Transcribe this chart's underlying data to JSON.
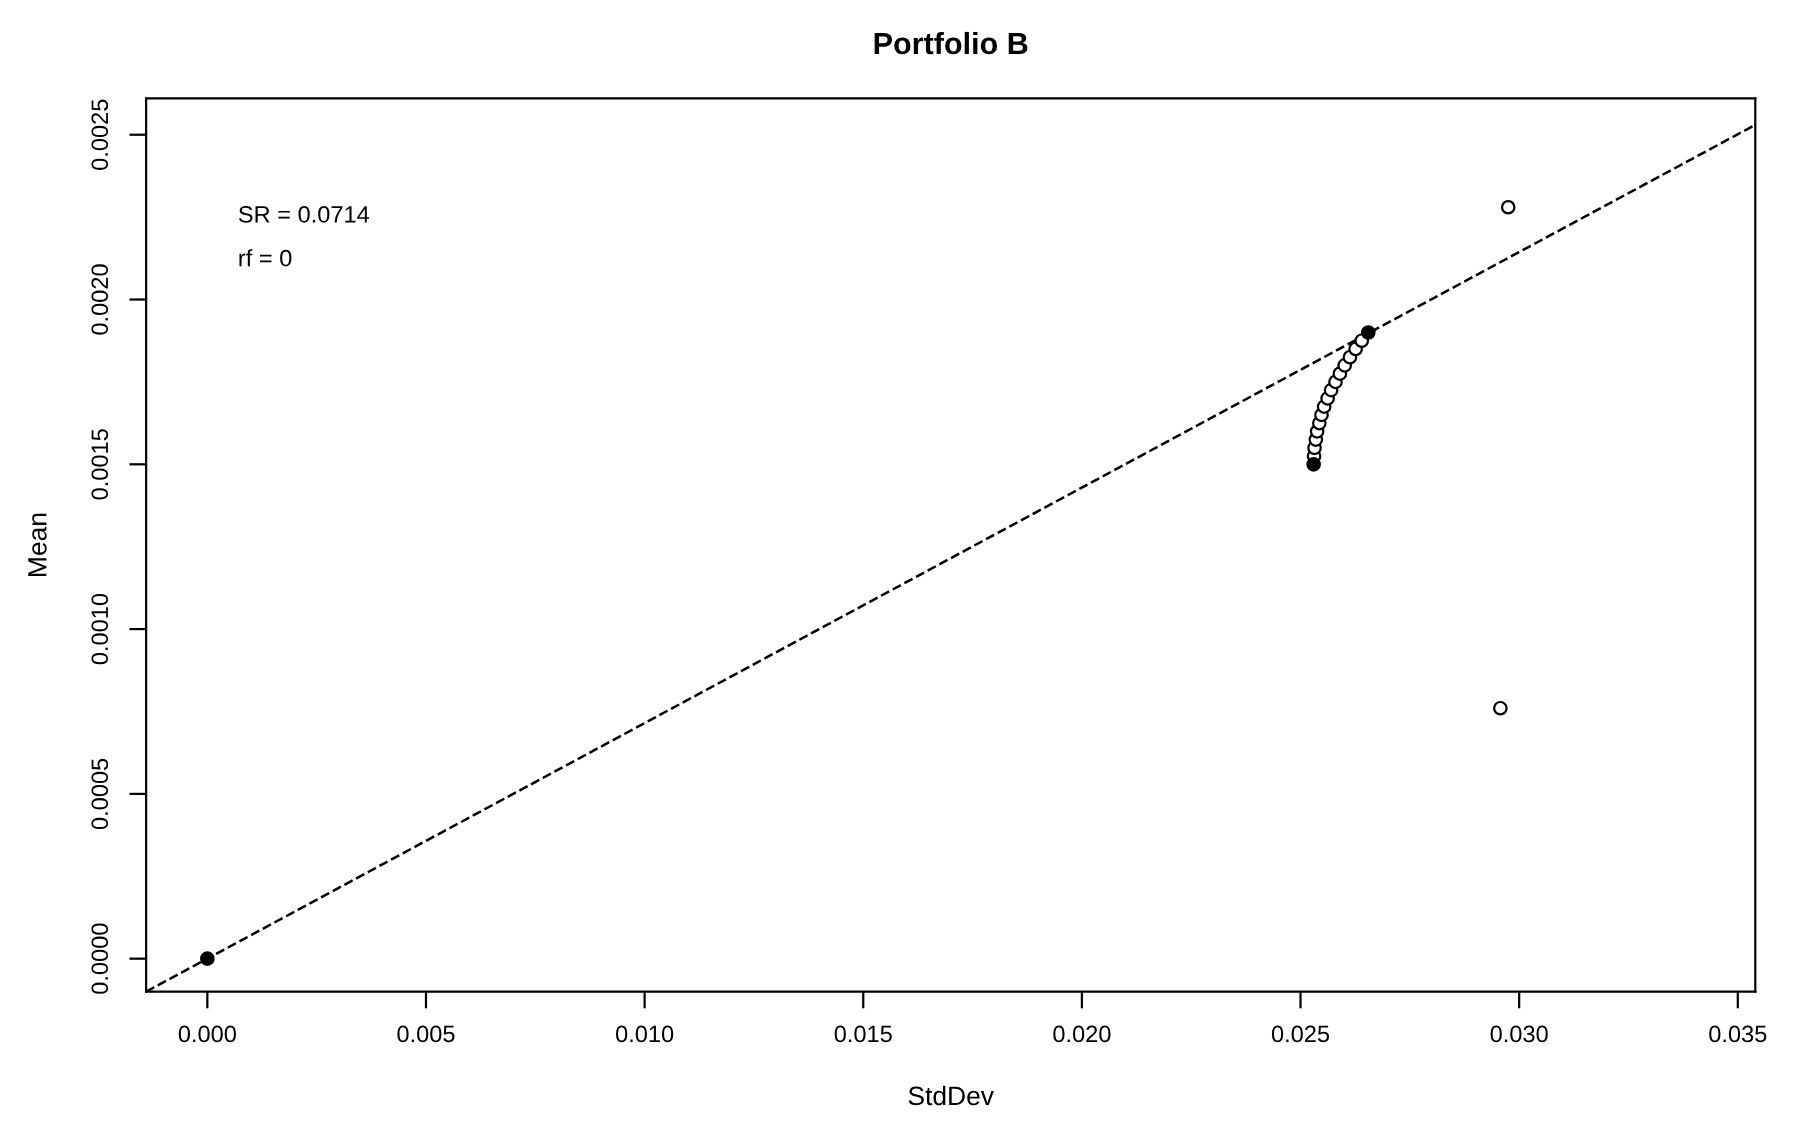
{
  "chart_data": {
    "type": "scatter",
    "title": "Portfolio B",
    "xlabel": "StdDev",
    "ylabel": "Mean",
    "annotations": [
      "SR = 0.0714",
      "rf = 0"
    ],
    "xlim": [
      -0.0014,
      0.0354
    ],
    "ylim": [
      -0.0001,
      0.00261
    ],
    "xticks": [
      {
        "value": 0,
        "label": "0.000"
      },
      {
        "value": 0.005,
        "label": "0.005"
      },
      {
        "value": 0.01,
        "label": "0.010"
      },
      {
        "value": 0.015,
        "label": "0.015"
      },
      {
        "value": 0.02,
        "label": "0.020"
      },
      {
        "value": 0.025,
        "label": "0.025"
      },
      {
        "value": 0.03,
        "label": "0.030"
      },
      {
        "value": 0.035,
        "label": "0.035"
      }
    ],
    "yticks": [
      {
        "value": 0,
        "label": "0.0000"
      },
      {
        "value": 0.0005,
        "label": "0.0005"
      },
      {
        "value": 0.001,
        "label": "0.0010"
      },
      {
        "value": 0.0015,
        "label": "0.0015"
      },
      {
        "value": 0.002,
        "label": "0.0020"
      },
      {
        "value": 0.0025,
        "label": "0.0025"
      }
    ],
    "series": [
      {
        "type": "line",
        "color": "#000000",
        "line_style": "dashed",
        "x": [
          -0.0014,
          0.0354
        ],
        "values": [
          -0.0001,
          0.00253
        ]
      },
      {
        "color": "#ffffff",
        "marker": "circle",
        "x": [
          0.02531,
          0.02532,
          0.02535,
          0.02538,
          0.02543,
          0.02548,
          0.02554,
          0.02562,
          0.0257,
          0.0258,
          0.0259,
          0.02601,
          0.02613,
          0.02626,
          0.0264
        ],
        "values": [
          0.001525,
          0.00155,
          0.001575,
          0.0016,
          0.001625,
          0.00165,
          0.001675,
          0.0017,
          0.001725,
          0.00175,
          0.001775,
          0.0018,
          0.001825,
          0.00185,
          0.001875
        ]
      },
      {
        "color": "#ffffff",
        "marker": "circle",
        "x": [
          0.02975,
          0.02957
        ],
        "values": [
          0.00228,
          0.00076
        ]
      },
      {
        "color": "#000000",
        "marker": "circle",
        "x": [
          0,
          0.0253,
          0.02655
        ],
        "values": [
          0,
          0.0015,
          0.0019
        ]
      }
    ]
  }
}
